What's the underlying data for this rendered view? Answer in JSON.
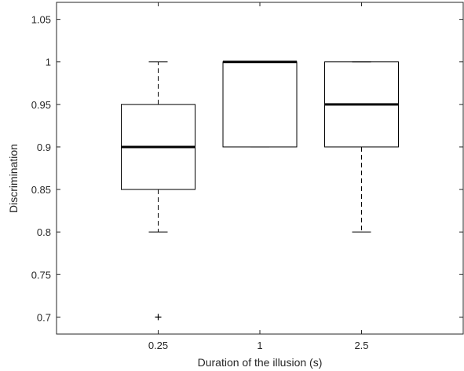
{
  "chart_data": {
    "type": "box",
    "xlabel": "Duration of the illusion (s)",
    "ylabel": "Discrimination",
    "ylim": [
      0.68,
      1.07
    ],
    "y_ticks": [
      0.7,
      0.75,
      0.8,
      0.85,
      0.9,
      0.95,
      1,
      1.05
    ],
    "y_tick_labels": [
      "0.7",
      "0.75",
      "0.8",
      "0.85",
      "0.9",
      "0.95",
      "1",
      "1.05"
    ],
    "categories": [
      "0.25",
      "1",
      "2.5"
    ],
    "boxes": [
      {
        "category": "0.25",
        "whisker_low": 0.8,
        "q1": 0.85,
        "median": 0.9,
        "q3": 0.95,
        "whisker_high": 1.0,
        "outliers": [
          0.7
        ]
      },
      {
        "category": "1",
        "whisker_low": 0.9,
        "q1": 0.9,
        "median": 1.0,
        "q3": 1.0,
        "whisker_high": 1.0,
        "outliers": []
      },
      {
        "category": "2.5",
        "whisker_low": 0.8,
        "q1": 0.9,
        "median": 0.95,
        "q3": 1.0,
        "whisker_high": 1.0,
        "outliers": []
      }
    ],
    "grid": false,
    "colors": {
      "box": "#000000",
      "axis": "#262626",
      "text": "#262626"
    }
  }
}
